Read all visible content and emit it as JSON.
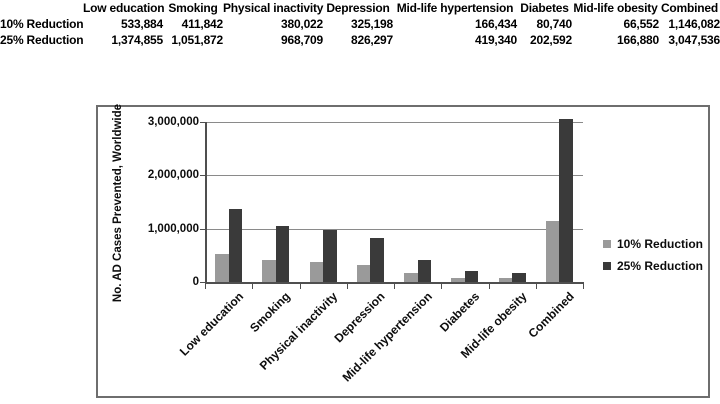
{
  "table": {
    "columns": [
      "Low education",
      "Smoking",
      "Physical inactivity",
      "Depression",
      "Mid-life hypertension",
      "Diabetes",
      "Mid-life obesity",
      "Combined"
    ],
    "rows": [
      {
        "label": "10% Reduction",
        "values": [
          "533,884",
          "411,842",
          "380,022",
          "325,198",
          "166,434",
          "80,740",
          "66,552",
          "1,146,082"
        ]
      },
      {
        "label": "25% Reduction",
        "values": [
          "1,374,855",
          "1,051,872",
          "968,709",
          "826,297",
          "419,340",
          "202,592",
          "166,880",
          "3,047,536"
        ]
      }
    ]
  },
  "chart_data": {
    "type": "bar",
    "title": "",
    "xlabel": "",
    "ylabel": "No. AD Cases Prevented, Worldwide",
    "categories": [
      "Low education",
      "Smoking",
      "Physical inactivity",
      "Depression",
      "Mid-life hypertension",
      "Diabetes",
      "Mid-life obesity",
      "Combined"
    ],
    "series": [
      {
        "name": "10% Reduction",
        "color": "#9a9a9a",
        "values": [
          533884,
          411842,
          380022,
          325198,
          166434,
          80740,
          66552,
          1146082
        ]
      },
      {
        "name": "25% Reduction",
        "color": "#3a3a3a",
        "values": [
          1374855,
          1051872,
          968709,
          826297,
          419340,
          202592,
          166880,
          3047536
        ]
      }
    ],
    "ylim": [
      0,
      3000000
    ],
    "ytick_values": [
      0,
      1000000,
      2000000,
      3000000
    ],
    "ytick_labels": [
      "0",
      "1,000,000",
      "2,000,000",
      "3,000,000"
    ],
    "grid": true,
    "legend_position": "right"
  },
  "colors": {
    "gridline": "#8a8a8a",
    "axis": "#4f4f4f",
    "chart_border": "#6e6e6e",
    "series_10pct": "#9a9a9a",
    "series_25pct": "#3a3a3a"
  }
}
